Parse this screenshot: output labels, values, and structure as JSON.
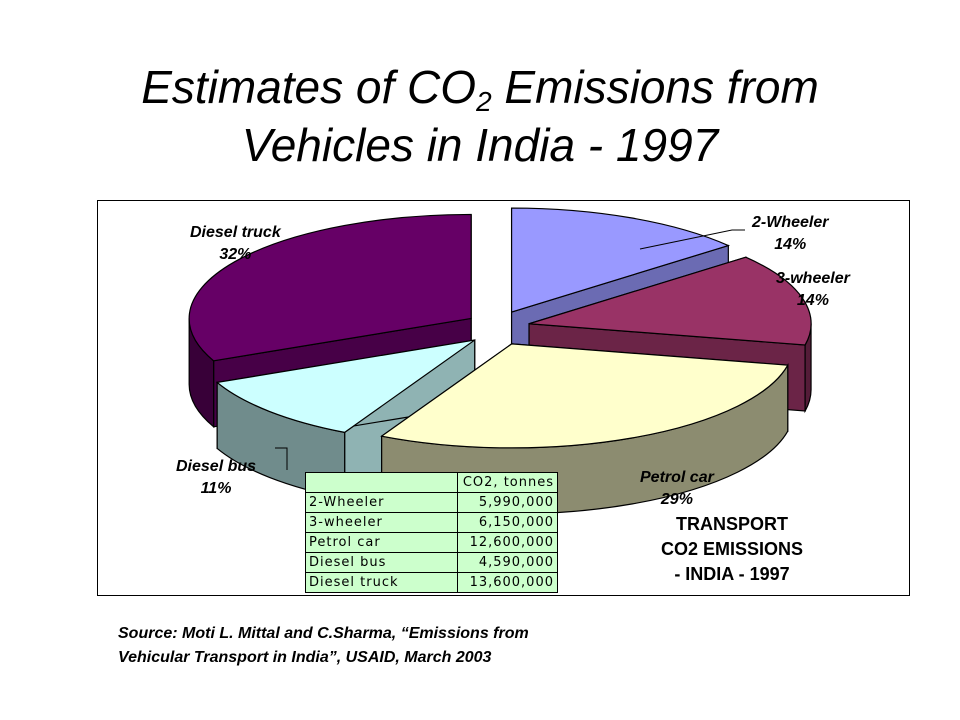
{
  "title": {
    "pre": "Estimates of  CO",
    "sub": "2",
    "post": " Emissions from",
    "line2": "Vehicles in India - 1997"
  },
  "chart_data": {
    "type": "pie",
    "categories": [
      "2-Wheeler",
      "3-wheeler",
      "Petrol car",
      "Diesel bus",
      "Diesel truck"
    ],
    "values": [
      5990000,
      6150000,
      12600000,
      4590000,
      13600000
    ],
    "percent_labels": [
      "14%",
      "14%",
      "29%",
      "11%",
      "32%"
    ],
    "colors": [
      "#9999ff",
      "#993366",
      "#ffffcc",
      "#ccffff",
      "#660066"
    ],
    "exploded": true,
    "three_d": true,
    "table_header": "CO2, tonnes",
    "table_values": [
      "5,990,000",
      "6,150,000",
      "12,600,000",
      "4,590,000",
      "13,600,000"
    ],
    "box_title": [
      "TRANSPORT",
      "CO2 EMISSIONS",
      "- INDIA - 1997"
    ]
  },
  "source": {
    "line1": "Source: Moti L. Mittal and C.Sharma, “Emissions from",
    "line2": "Vehicular Transport in India”, USAID, March 2003"
  }
}
